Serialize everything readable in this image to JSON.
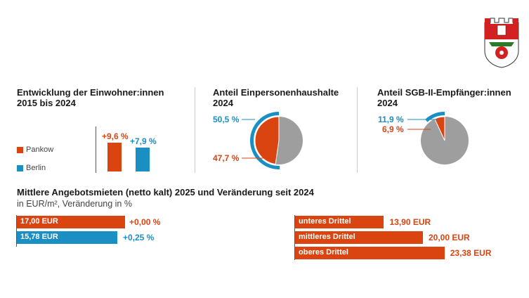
{
  "colors": {
    "pankow": "#d94410",
    "berlin": "#1a8fc4",
    "rest": "#9e9e9e"
  },
  "crest": {
    "icon": "pankow-coat-of-arms"
  },
  "chart_data": [
    {
      "type": "bar",
      "title": "Entwicklung der Einwohner:innen",
      "subtitle": "2015 bis 2024",
      "series": [
        {
          "name": "Pankow",
          "value": 9.6,
          "label": "+9,6 %"
        },
        {
          "name": "Berlin",
          "value": 7.9,
          "label": "+7,9 %"
        }
      ],
      "legend": [
        "Pankow",
        "Berlin"
      ],
      "legend_placement": "left"
    },
    {
      "type": "pie",
      "title": "Anteil Einpersonenhaushalte",
      "subtitle": "2024",
      "pankow": {
        "value": 47.7,
        "label": "47,7 %"
      },
      "berlin": {
        "value": 50.5,
        "label": "50,5 %"
      }
    },
    {
      "type": "pie",
      "title": "Anteil SGB-II-Empfänger:innen",
      "subtitle": "2024",
      "pankow": {
        "value": 6.9,
        "label": "6,9 %"
      },
      "berlin": {
        "value": 11.9,
        "label": "11,9 %"
      }
    },
    {
      "type": "bar",
      "title": "Mittlere Angebotsmieten (netto kalt) 2025 und Veränderung seit 2024",
      "subtitle": "in EUR/m², Veränderung in %",
      "series": [
        {
          "name": "Pankow",
          "value": 17.0,
          "label": "17,00 EUR",
          "change": "+0,00 %"
        },
        {
          "name": "Berlin",
          "value": 15.78,
          "label": "15,78 EUR",
          "change": "+0,25 %"
        }
      ]
    },
    {
      "type": "bar",
      "categories": [
        "unteres Drittel",
        "mittleres Drittel",
        "oberes Drittel"
      ],
      "values": [
        13.9,
        20.0,
        23.38
      ],
      "labels": [
        "13,90 EUR",
        "20,00 EUR",
        "23,38 EUR"
      ]
    }
  ]
}
